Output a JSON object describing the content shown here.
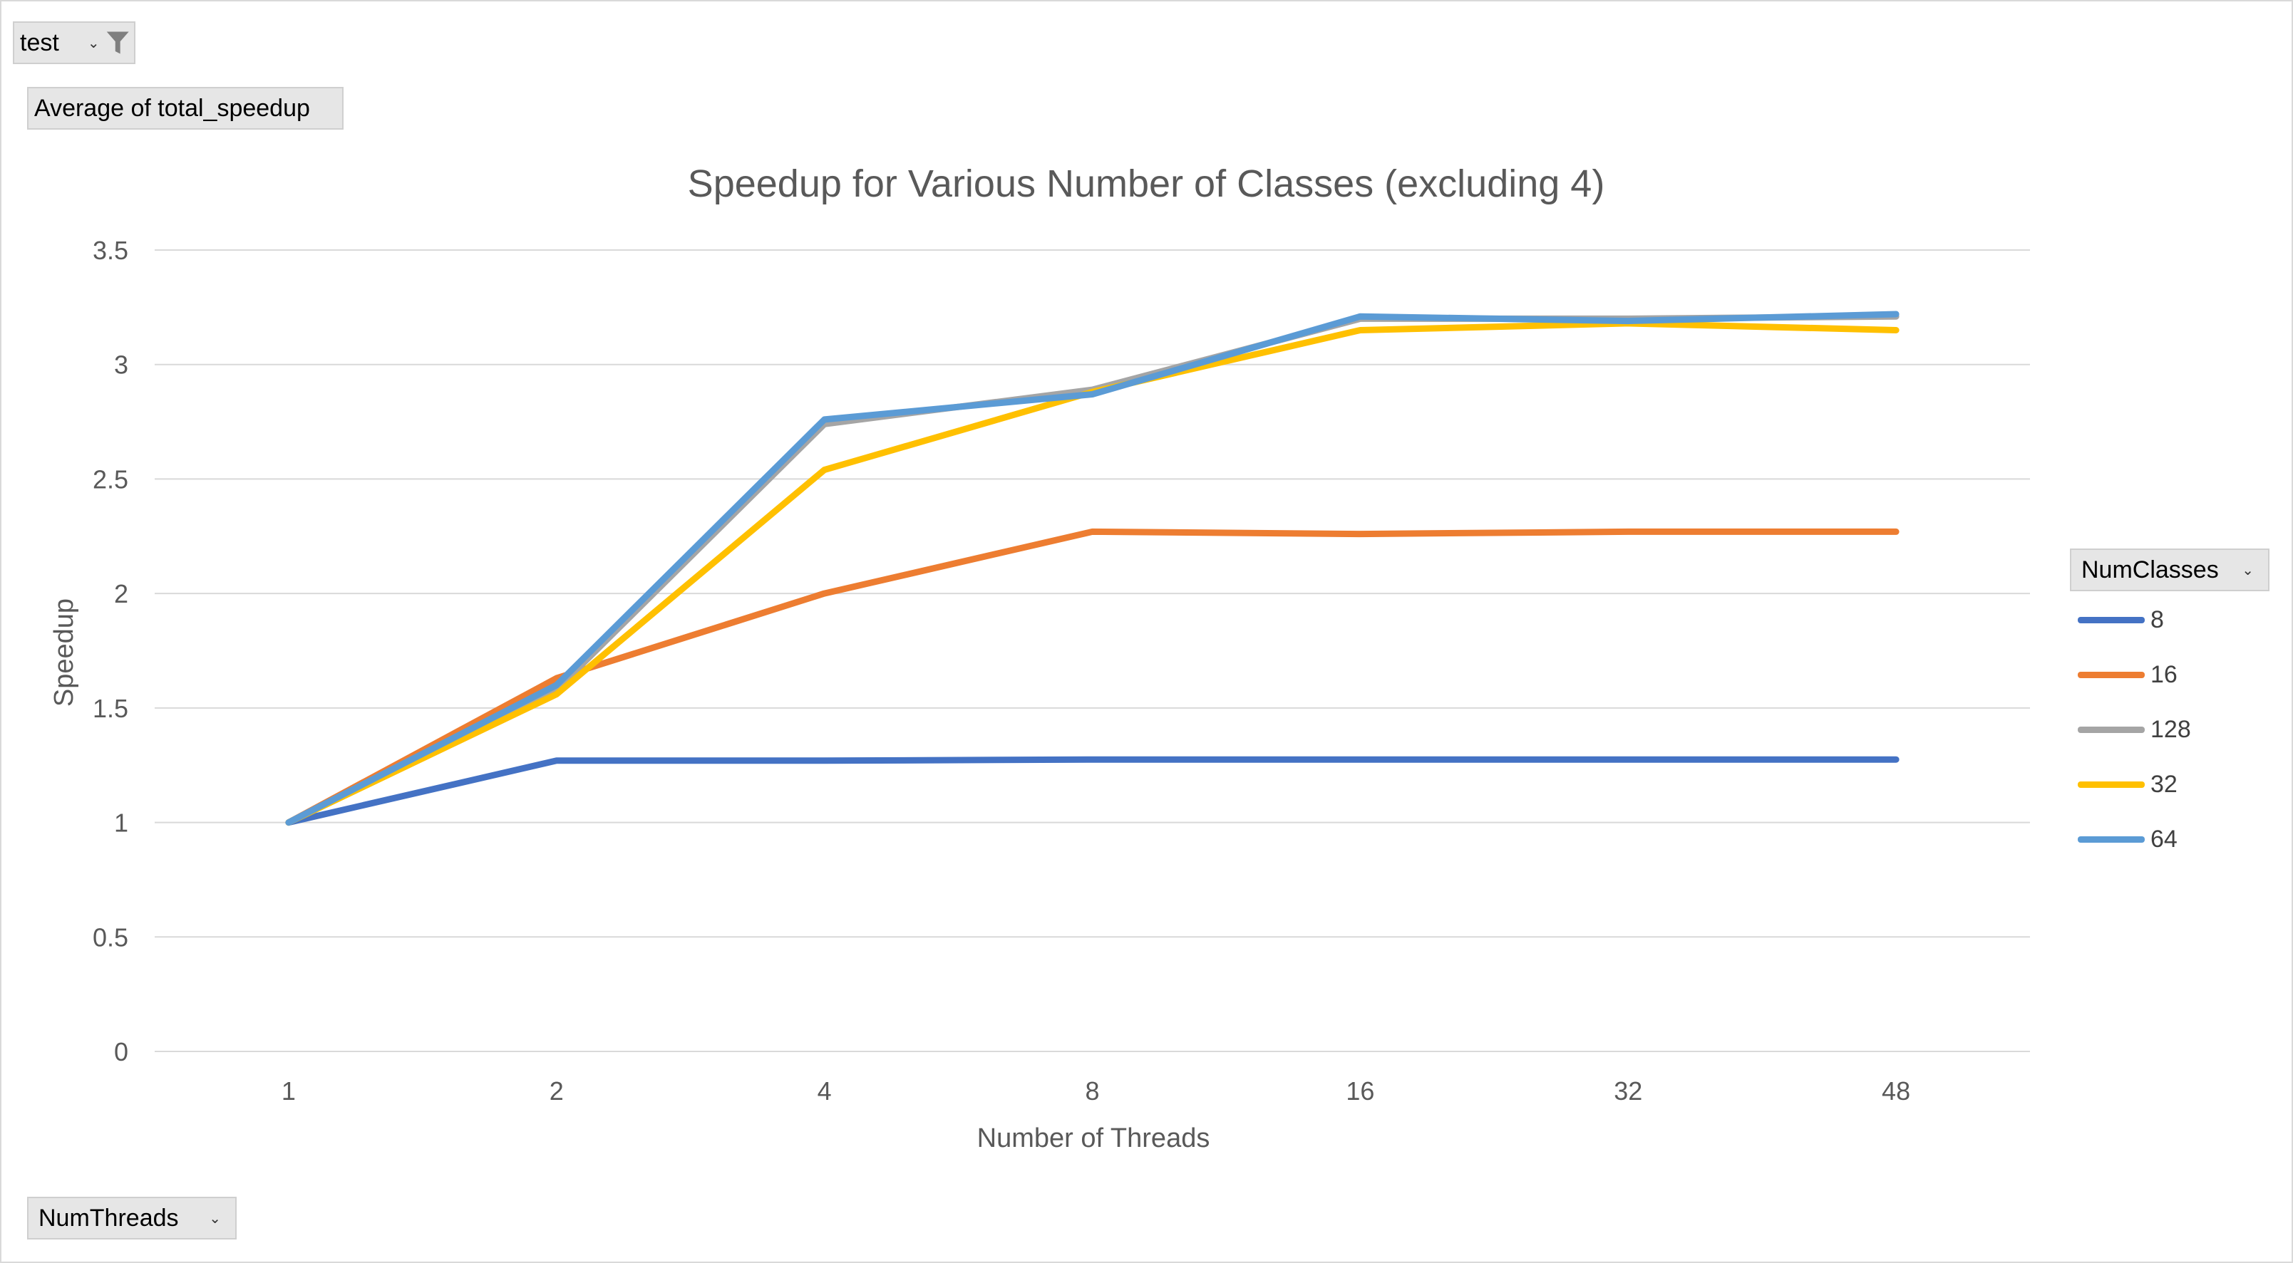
{
  "filter_button": {
    "label": "test",
    "icon": "funnel-icon"
  },
  "values_button": {
    "label": "Average of total_speedup"
  },
  "axis_field_button": {
    "label": "NumThreads"
  },
  "legend_field_button": {
    "label": "NumClasses"
  },
  "chart_data": {
    "type": "line",
    "title": "Speedup for Various Number of Classes (excluding 4)",
    "xlabel": "Number of Threads",
    "ylabel": "Speedup",
    "categories": [
      "1",
      "2",
      "4",
      "8",
      "16",
      "32",
      "48"
    ],
    "ylim": [
      0,
      3.5
    ],
    "yticks": [
      "0",
      "0.5",
      "1",
      "1.5",
      "2",
      "2.5",
      "3",
      "3.5"
    ],
    "grid": true,
    "legend_position": "right",
    "series": [
      {
        "name": "8",
        "color": "#4472C4",
        "values": [
          1,
          1.27,
          1.27,
          1.275,
          1.275,
          1.275,
          1.275
        ]
      },
      {
        "name": "16",
        "color": "#ED7D31",
        "values": [
          1,
          1.63,
          2.0,
          2.27,
          2.26,
          2.27,
          2.27
        ]
      },
      {
        "name": "128",
        "color": "#A5A5A5",
        "values": [
          1,
          1.58,
          2.74,
          2.89,
          3.2,
          3.2,
          3.21
        ]
      },
      {
        "name": "32",
        "color": "#FFC000",
        "values": [
          1,
          1.56,
          2.54,
          2.88,
          3.15,
          3.18,
          3.15
        ]
      },
      {
        "name": "64",
        "color": "#5B9BD5",
        "values": [
          1,
          1.6,
          2.76,
          2.87,
          3.21,
          3.19,
          3.22
        ]
      }
    ]
  }
}
